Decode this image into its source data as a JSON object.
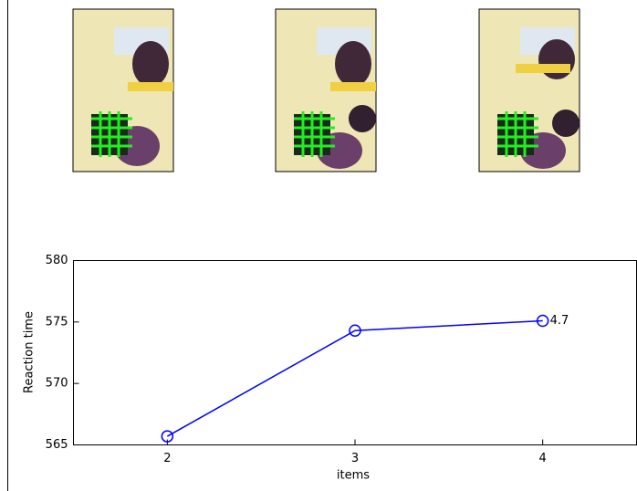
{
  "chart_data": {
    "type": "line",
    "x": [
      2,
      3,
      4
    ],
    "series": [
      {
        "color": "#0000ff",
        "values": [
          565.7,
          574.3,
          575.1
        ]
      }
    ],
    "xlim": [
      1.5,
      4.5
    ],
    "xticks": [
      2,
      3,
      4
    ],
    "ylim": [
      565,
      580
    ],
    "yticks": [
      565,
      570,
      575,
      580
    ],
    "xlabel": "items",
    "ylabel": "Reaction time",
    "annotation": "4.7"
  }
}
